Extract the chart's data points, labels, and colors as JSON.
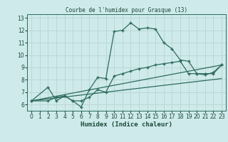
{
  "xlabel": "Humidex (Indice chaleur)",
  "bg_color": "#ceeaea",
  "grid_color": "#b8d4d4",
  "line_color": "#2e6b5e",
  "xlim": [
    -0.5,
    23.5
  ],
  "ylim": [
    5.5,
    13.3
  ],
  "xticks": [
    0,
    1,
    2,
    3,
    4,
    5,
    6,
    7,
    8,
    9,
    10,
    11,
    12,
    13,
    14,
    15,
    16,
    17,
    18,
    19,
    20,
    21,
    22,
    23
  ],
  "yticks": [
    6,
    7,
    8,
    9,
    10,
    11,
    12,
    13
  ],
  "line1_x": [
    0,
    2,
    3,
    4,
    5,
    6,
    7,
    8,
    9,
    10,
    11,
    12,
    13,
    14,
    15,
    16,
    17,
    18,
    19,
    20,
    21,
    22,
    23
  ],
  "line1_y": [
    6.3,
    7.4,
    6.3,
    6.7,
    6.3,
    5.8,
    7.2,
    8.2,
    8.1,
    11.9,
    12.0,
    12.6,
    12.1,
    12.2,
    12.1,
    11.0,
    10.5,
    9.6,
    9.5,
    8.5,
    8.4,
    8.6,
    9.2
  ],
  "line2_x": [
    0,
    2,
    3,
    4,
    5,
    6,
    7,
    8,
    9,
    10,
    11,
    12,
    13,
    14,
    15,
    16,
    17,
    18,
    19,
    20,
    21,
    22,
    23
  ],
  "line2_y": [
    6.3,
    6.3,
    6.6,
    6.7,
    6.3,
    6.3,
    6.6,
    7.2,
    7.0,
    8.3,
    8.5,
    8.7,
    8.9,
    9.0,
    9.2,
    9.3,
    9.4,
    9.5,
    8.5,
    8.5,
    8.5,
    8.5,
    9.2
  ],
  "line3_x": [
    0,
    23
  ],
  "line3_y": [
    6.3,
    9.2
  ],
  "line4_x": [
    0,
    23
  ],
  "line4_y": [
    6.3,
    8.1
  ]
}
